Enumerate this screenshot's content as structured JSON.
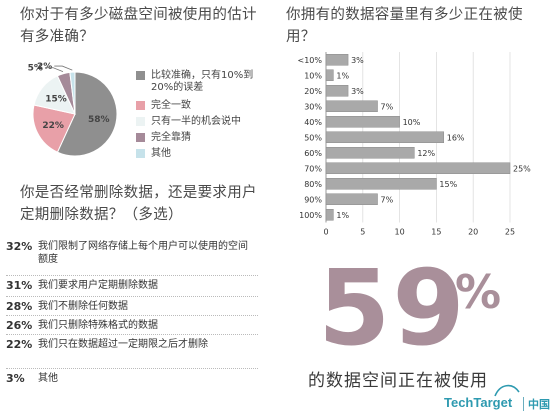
{
  "chart_data": [
    {
      "type": "pie",
      "title": "你对于有多少磁盘空间被使用的估计有多准确？",
      "slices": [
        {
          "label": "比较准确，只有10%到20%的误差",
          "value": 58,
          "display": "58%",
          "color": "#8f8f8f"
        },
        {
          "label": "完全一致",
          "value": 22,
          "display": "22%",
          "color": "#e8a0a8"
        },
        {
          "label": "只有一半的机会说中",
          "value": 15,
          "display": "15%",
          "color": "#ecf3f3"
        },
        {
          "label": "完全靠猜",
          "value": 5,
          "display": "5%",
          "color": "#a58a99"
        },
        {
          "label": "其他",
          "value": 2,
          "display": "2%",
          "color": "#c6e2ea"
        }
      ]
    },
    {
      "type": "bar",
      "orientation": "horizontal",
      "title": "你拥有的数据容量里有多少正在被使用？",
      "categories": [
        "<10%",
        "10%",
        "20%",
        "30%",
        "40%",
        "50%",
        "60%",
        "70%",
        "80%",
        "90%",
        "100%"
      ],
      "values": [
        3,
        1,
        3,
        7,
        10,
        16,
        12,
        25,
        15,
        7,
        1
      ],
      "value_labels": [
        "3%",
        "1%",
        "3%",
        "7%",
        "10%",
        "16%",
        "12%",
        "25%",
        "15%",
        "7%",
        "1%"
      ],
      "xlim": [
        0,
        25
      ],
      "xticks": [
        "0",
        "5",
        "10",
        "15",
        "20",
        "25"
      ],
      "bar_color": "#a9a9a9"
    },
    {
      "type": "table",
      "title": "你是否经常删除数据，还是要求用户定期删除数据？（多选）",
      "rows": [
        {
          "pct": "32%",
          "text": "我们限制了网络存储上每个用户可以使用的空间额度"
        },
        {
          "pct": "31%",
          "text": "我们要求用户定期删除数据"
        },
        {
          "pct": "28%",
          "text": "我们不删除任何数据"
        },
        {
          "pct": "26%",
          "text": "我们只删除特殊格式的数据"
        },
        {
          "pct": "22%",
          "text": "我们只在数据超过一定期限之后才删除"
        },
        {
          "pct": "3%",
          "text": "其他"
        }
      ]
    }
  ],
  "highlight": {
    "number": "59",
    "percent_sign": "%",
    "caption": "的数据空间正在被使用"
  },
  "brand": {
    "name": "TechTarget",
    "suffix": "中国"
  }
}
